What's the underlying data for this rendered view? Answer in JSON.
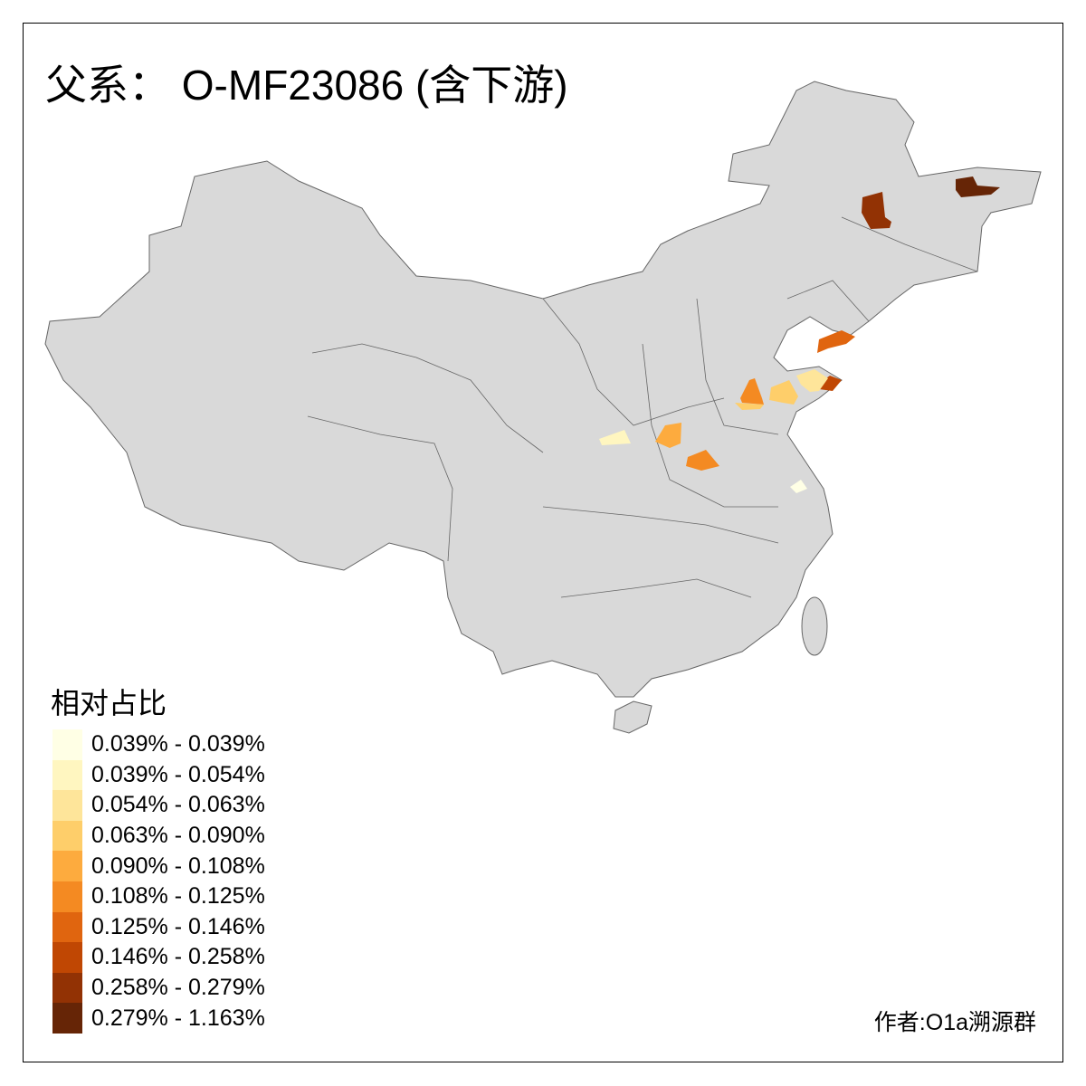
{
  "title": "父系： O-MF23086 (含下游)",
  "legend": {
    "title": "相对占比",
    "items": [
      {
        "label": "0.039% - 0.039%",
        "color": "#FFFFE5"
      },
      {
        "label": "0.039% - 0.054%",
        "color": "#FFF6C0"
      },
      {
        "label": "0.054% - 0.063%",
        "color": "#FEE59A"
      },
      {
        "label": "0.063% - 0.090%",
        "color": "#FECE6A"
      },
      {
        "label": "0.090% - 0.108%",
        "color": "#FDAB3E"
      },
      {
        "label": "0.108% - 0.125%",
        "color": "#F48A22"
      },
      {
        "label": "0.125% - 0.146%",
        "color": "#E0650F"
      },
      {
        "label": "0.146% - 0.258%",
        "color": "#C04703"
      },
      {
        "label": "0.258% - 0.279%",
        "color": "#923204"
      },
      {
        "label": "0.279% - 1.163%",
        "color": "#662506"
      }
    ]
  },
  "author": "作者:O1a溯源群",
  "colors": {
    "land": "#D9D9D9",
    "border": "#666666",
    "no_data": "#D9D9D9"
  }
}
